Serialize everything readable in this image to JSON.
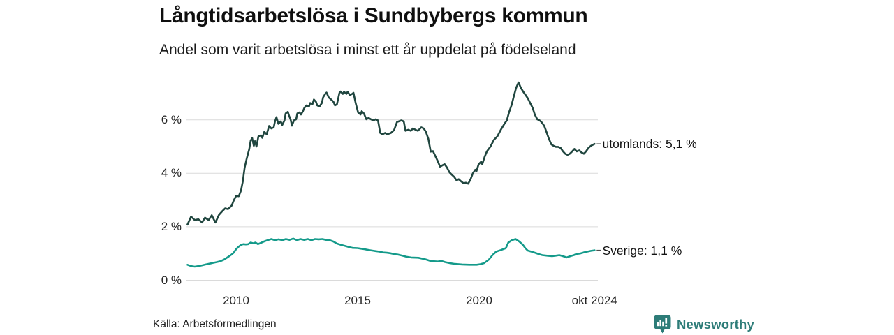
{
  "footer": {
    "source": "Källa: Arbetsförmedlingen",
    "brand": "Newsworthy",
    "brand_color": "#2d7c78"
  },
  "chart_data": {
    "type": "line",
    "title": "Långtidsarbetslösa i Sundbybergs kommun",
    "subtitle": "Andel som varit arbetslösa i minst ett år uppdelat på födelseland",
    "unit": "%",
    "grid": "horizontal",
    "legend_position": "end-of-line-labels",
    "grid_color": "#dadada",
    "x_axis": {
      "range": [
        2008.0,
        2024.75
      ],
      "ticks": [
        {
          "t": 2010,
          "label": "2010"
        },
        {
          "t": 2015,
          "label": "2015"
        },
        {
          "t": 2020,
          "label": "2020"
        },
        {
          "t": 2024.75,
          "label": "okt 2024"
        }
      ]
    },
    "y_axis": {
      "range": [
        0,
        7.75
      ],
      "ticks": [
        {
          "v": 0,
          "label": "0 %"
        },
        {
          "v": 2,
          "label": "2 %"
        },
        {
          "v": 4,
          "label": "4 %"
        },
        {
          "v": 6,
          "label": "6 %"
        }
      ]
    },
    "series": [
      {
        "name": "utomlands",
        "end_label": "utomlands: 5,1 %",
        "latest_value": "5,1 %",
        "color": "#20463f",
        "points": [
          [
            2008.0,
            2.08
          ],
          [
            2008.15,
            2.38
          ],
          [
            2008.3,
            2.25
          ],
          [
            2008.45,
            2.28
          ],
          [
            2008.6,
            2.16
          ],
          [
            2008.72,
            2.34
          ],
          [
            2008.87,
            2.25
          ],
          [
            2009.0,
            2.43
          ],
          [
            2009.15,
            2.16
          ],
          [
            2009.3,
            2.45
          ],
          [
            2009.45,
            2.6
          ],
          [
            2009.55,
            2.69
          ],
          [
            2009.67,
            2.66
          ],
          [
            2009.82,
            2.79
          ],
          [
            2009.91,
            3.0
          ],
          [
            2010.01,
            3.16
          ],
          [
            2010.11,
            3.14
          ],
          [
            2010.2,
            3.35
          ],
          [
            2010.28,
            3.7
          ],
          [
            2010.35,
            4.2
          ],
          [
            2010.44,
            4.56
          ],
          [
            2010.54,
            4.9
          ],
          [
            2010.6,
            5.22
          ],
          [
            2010.66,
            5.32
          ],
          [
            2010.73,
            5.03
          ],
          [
            2010.78,
            5.2
          ],
          [
            2010.84,
            5.0
          ],
          [
            2010.92,
            5.38
          ],
          [
            2011.02,
            5.42
          ],
          [
            2011.08,
            5.33
          ],
          [
            2011.16,
            5.55
          ],
          [
            2011.26,
            5.46
          ],
          [
            2011.36,
            5.77
          ],
          [
            2011.45,
            5.68
          ],
          [
            2011.55,
            5.72
          ],
          [
            2011.6,
            5.94
          ],
          [
            2011.66,
            6.1
          ],
          [
            2011.74,
            5.85
          ],
          [
            2011.84,
            5.94
          ],
          [
            2011.9,
            5.81
          ],
          [
            2011.99,
            5.98
          ],
          [
            2012.04,
            6.24
          ],
          [
            2012.13,
            6.3
          ],
          [
            2012.18,
            6.15
          ],
          [
            2012.24,
            6.02
          ],
          [
            2012.3,
            5.78
          ],
          [
            2012.38,
            5.98
          ],
          [
            2012.47,
            6.02
          ],
          [
            2012.52,
            6.24
          ],
          [
            2012.61,
            6.28
          ],
          [
            2012.67,
            6.2
          ],
          [
            2012.75,
            6.32
          ],
          [
            2012.81,
            6.45
          ],
          [
            2012.9,
            6.54
          ],
          [
            2013.0,
            6.5
          ],
          [
            2013.05,
            6.63
          ],
          [
            2013.14,
            6.58
          ],
          [
            2013.2,
            6.76
          ],
          [
            2013.29,
            6.67
          ],
          [
            2013.34,
            6.54
          ],
          [
            2013.43,
            6.5
          ],
          [
            2013.53,
            6.63
          ],
          [
            2013.58,
            6.84
          ],
          [
            2013.67,
            6.97
          ],
          [
            2013.72,
            7.02
          ],
          [
            2013.81,
            6.84
          ],
          [
            2013.91,
            6.76
          ],
          [
            2014.01,
            6.67
          ],
          [
            2014.07,
            6.54
          ],
          [
            2014.15,
            6.58
          ],
          [
            2014.25,
            7.0
          ],
          [
            2014.3,
            7.06
          ],
          [
            2014.39,
            6.97
          ],
          [
            2014.44,
            7.05
          ],
          [
            2014.54,
            6.97
          ],
          [
            2014.59,
            7.05
          ],
          [
            2014.68,
            6.93
          ],
          [
            2014.78,
            6.97
          ],
          [
            2014.83,
            7.01
          ],
          [
            2014.92,
            6.63
          ],
          [
            2015.02,
            6.28
          ],
          [
            2015.12,
            6.2
          ],
          [
            2015.17,
            6.32
          ],
          [
            2015.26,
            6.24
          ],
          [
            2015.36,
            6.02
          ],
          [
            2015.45,
            6.07
          ],
          [
            2015.55,
            6.02
          ],
          [
            2015.65,
            5.98
          ],
          [
            2015.74,
            6.02
          ],
          [
            2015.84,
            5.98
          ],
          [
            2015.93,
            5.51
          ],
          [
            2016.03,
            5.46
          ],
          [
            2016.13,
            5.51
          ],
          [
            2016.22,
            5.46
          ],
          [
            2016.37,
            5.51
          ],
          [
            2016.5,
            5.62
          ],
          [
            2016.62,
            5.92
          ],
          [
            2016.8,
            5.98
          ],
          [
            2016.9,
            5.94
          ],
          [
            2016.97,
            5.59
          ],
          [
            2017.09,
            5.63
          ],
          [
            2017.19,
            5.59
          ],
          [
            2017.28,
            5.68
          ],
          [
            2017.38,
            5.63
          ],
          [
            2017.48,
            5.59
          ],
          [
            2017.62,
            5.72
          ],
          [
            2017.72,
            5.68
          ],
          [
            2017.81,
            5.55
          ],
          [
            2017.91,
            5.29
          ],
          [
            2018.01,
            4.81
          ],
          [
            2018.1,
            4.83
          ],
          [
            2018.2,
            4.64
          ],
          [
            2018.29,
            4.47
          ],
          [
            2018.39,
            4.25
          ],
          [
            2018.49,
            4.3
          ],
          [
            2018.58,
            4.34
          ],
          [
            2018.68,
            4.21
          ],
          [
            2018.78,
            4.04
          ],
          [
            2018.87,
            3.95
          ],
          [
            2018.97,
            3.87
          ],
          [
            2019.07,
            3.74
          ],
          [
            2019.16,
            3.78
          ],
          [
            2019.26,
            3.7
          ],
          [
            2019.36,
            3.63
          ],
          [
            2019.45,
            3.65
          ],
          [
            2019.55,
            3.61
          ],
          [
            2019.65,
            3.78
          ],
          [
            2019.74,
            4.0
          ],
          [
            2019.84,
            4.13
          ],
          [
            2019.89,
            4.08
          ],
          [
            2019.98,
            4.34
          ],
          [
            2020.08,
            4.43
          ],
          [
            2020.13,
            4.34
          ],
          [
            2020.22,
            4.6
          ],
          [
            2020.32,
            4.82
          ],
          [
            2020.46,
            4.99
          ],
          [
            2020.61,
            5.25
          ],
          [
            2020.75,
            5.38
          ],
          [
            2020.9,
            5.64
          ],
          [
            2021.04,
            5.85
          ],
          [
            2021.14,
            5.98
          ],
          [
            2021.23,
            6.28
          ],
          [
            2021.33,
            6.54
          ],
          [
            2021.43,
            6.89
          ],
          [
            2021.52,
            7.19
          ],
          [
            2021.62,
            7.4
          ],
          [
            2021.72,
            7.19
          ],
          [
            2021.81,
            7.06
          ],
          [
            2021.91,
            6.93
          ],
          [
            2022.01,
            6.8
          ],
          [
            2022.1,
            6.63
          ],
          [
            2022.2,
            6.45
          ],
          [
            2022.29,
            6.2
          ],
          [
            2022.39,
            6.02
          ],
          [
            2022.49,
            5.98
          ],
          [
            2022.58,
            5.9
          ],
          [
            2022.68,
            5.77
          ],
          [
            2022.77,
            5.55
          ],
          [
            2022.87,
            5.29
          ],
          [
            2022.97,
            5.08
          ],
          [
            2023.06,
            5.03
          ],
          [
            2023.16,
            4.99
          ],
          [
            2023.25,
            4.99
          ],
          [
            2023.35,
            4.95
          ],
          [
            2023.45,
            4.82
          ],
          [
            2023.54,
            4.73
          ],
          [
            2023.64,
            4.69
          ],
          [
            2023.73,
            4.73
          ],
          [
            2023.83,
            4.82
          ],
          [
            2023.92,
            4.91
          ],
          [
            2024.02,
            4.82
          ],
          [
            2024.12,
            4.86
          ],
          [
            2024.21,
            4.78
          ],
          [
            2024.31,
            4.73
          ],
          [
            2024.4,
            4.82
          ],
          [
            2024.5,
            4.95
          ],
          [
            2024.6,
            5.03
          ],
          [
            2024.75,
            5.1
          ]
        ]
      },
      {
        "name": "Sverige",
        "end_label": "Sverige: 1,1 %",
        "latest_value": "1,1 %",
        "color": "#149a8a",
        "points": [
          [
            2008.0,
            0.58
          ],
          [
            2008.15,
            0.53
          ],
          [
            2008.3,
            0.51
          ],
          [
            2008.45,
            0.53
          ],
          [
            2008.6,
            0.56
          ],
          [
            2008.75,
            0.59
          ],
          [
            2008.9,
            0.62
          ],
          [
            2009.05,
            0.65
          ],
          [
            2009.2,
            0.68
          ],
          [
            2009.35,
            0.71
          ],
          [
            2009.5,
            0.77
          ],
          [
            2009.65,
            0.86
          ],
          [
            2009.8,
            0.95
          ],
          [
            2009.9,
            1.03
          ],
          [
            2010.0,
            1.16
          ],
          [
            2010.1,
            1.25
          ],
          [
            2010.2,
            1.32
          ],
          [
            2010.3,
            1.35
          ],
          [
            2010.4,
            1.34
          ],
          [
            2010.5,
            1.35
          ],
          [
            2010.6,
            1.41
          ],
          [
            2010.7,
            1.38
          ],
          [
            2010.8,
            1.41
          ],
          [
            2010.9,
            1.35
          ],
          [
            2011.0,
            1.39
          ],
          [
            2011.15,
            1.45
          ],
          [
            2011.3,
            1.5
          ],
          [
            2011.45,
            1.54
          ],
          [
            2011.6,
            1.5
          ],
          [
            2011.75,
            1.53
          ],
          [
            2011.9,
            1.5
          ],
          [
            2012.05,
            1.54
          ],
          [
            2012.2,
            1.51
          ],
          [
            2012.35,
            1.56
          ],
          [
            2012.5,
            1.5
          ],
          [
            2012.65,
            1.54
          ],
          [
            2012.8,
            1.51
          ],
          [
            2012.95,
            1.54
          ],
          [
            2013.1,
            1.5
          ],
          [
            2013.25,
            1.54
          ],
          [
            2013.4,
            1.53
          ],
          [
            2013.55,
            1.54
          ],
          [
            2013.7,
            1.51
          ],
          [
            2013.85,
            1.5
          ],
          [
            2014.0,
            1.45
          ],
          [
            2014.15,
            1.37
          ],
          [
            2014.3,
            1.33
          ],
          [
            2014.5,
            1.28
          ],
          [
            2014.65,
            1.24
          ],
          [
            2014.8,
            1.21
          ],
          [
            2015.0,
            1.2
          ],
          [
            2015.15,
            1.18
          ],
          [
            2015.3,
            1.16
          ],
          [
            2015.45,
            1.13
          ],
          [
            2015.6,
            1.11
          ],
          [
            2015.75,
            1.09
          ],
          [
            2015.9,
            1.07
          ],
          [
            2016.05,
            1.04
          ],
          [
            2016.2,
            1.03
          ],
          [
            2016.35,
            1.01
          ],
          [
            2016.5,
            0.98
          ],
          [
            2016.65,
            0.96
          ],
          [
            2016.8,
            0.93
          ],
          [
            2017.0,
            0.88
          ],
          [
            2017.2,
            0.85
          ],
          [
            2017.5,
            0.84
          ],
          [
            2017.8,
            0.78
          ],
          [
            2018.0,
            0.72
          ],
          [
            2018.15,
            0.71
          ],
          [
            2018.3,
            0.7
          ],
          [
            2018.45,
            0.72
          ],
          [
            2018.6,
            0.68
          ],
          [
            2018.8,
            0.64
          ],
          [
            2019.0,
            0.61
          ],
          [
            2019.3,
            0.59
          ],
          [
            2019.6,
            0.58
          ],
          [
            2019.9,
            0.58
          ],
          [
            2020.05,
            0.6
          ],
          [
            2020.2,
            0.64
          ],
          [
            2020.4,
            0.77
          ],
          [
            2020.55,
            0.94
          ],
          [
            2020.7,
            1.07
          ],
          [
            2020.9,
            1.13
          ],
          [
            2021.1,
            1.2
          ],
          [
            2021.2,
            1.41
          ],
          [
            2021.35,
            1.5
          ],
          [
            2021.5,
            1.54
          ],
          [
            2021.65,
            1.45
          ],
          [
            2021.8,
            1.33
          ],
          [
            2021.9,
            1.2
          ],
          [
            2022.0,
            1.11
          ],
          [
            2022.15,
            1.07
          ],
          [
            2022.3,
            1.03
          ],
          [
            2022.45,
            0.98
          ],
          [
            2022.6,
            0.94
          ],
          [
            2022.8,
            0.92
          ],
          [
            2023.0,
            0.9
          ],
          [
            2023.15,
            0.92
          ],
          [
            2023.3,
            0.94
          ],
          [
            2023.45,
            0.9
          ],
          [
            2023.6,
            0.85
          ],
          [
            2023.75,
            0.9
          ],
          [
            2023.9,
            0.94
          ],
          [
            2024.0,
            0.98
          ],
          [
            2024.15,
            1.0
          ],
          [
            2024.3,
            1.04
          ],
          [
            2024.45,
            1.07
          ],
          [
            2024.6,
            1.1
          ],
          [
            2024.75,
            1.12
          ]
        ]
      }
    ]
  }
}
